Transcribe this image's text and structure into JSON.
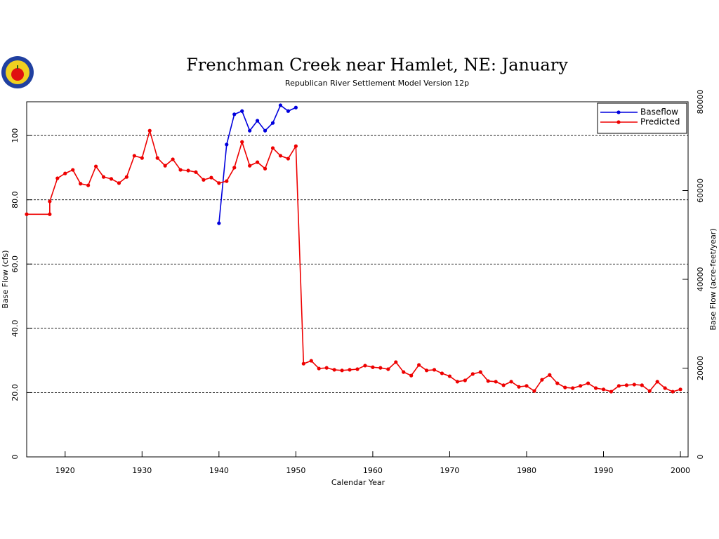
{
  "chart_data": {
    "type": "line",
    "title": "Frenchman Creek near Hamlet, NE: January",
    "subtitle": "Republican River Settlement Model Version 12p",
    "xlabel": "Calendar Year",
    "ylabel": "Base Flow (cfs)",
    "y2label": "Base Flow (acre-feet/year)",
    "xlim": [
      1915,
      2001
    ],
    "xticks": [
      1920,
      1930,
      1940,
      1950,
      1960,
      1970,
      1980,
      1990,
      2000
    ],
    "ylim": [
      0,
      110.5
    ],
    "yticks": [
      0,
      {
        "value": 20,
        "label": "20.0"
      },
      {
        "value": 40,
        "label": "40.0"
      },
      {
        "value": 60,
        "label": "60.0"
      },
      {
        "value": 80,
        "label": "80.0"
      },
      100
    ],
    "y2lim": [
      0,
      80000
    ],
    "y2ticks": [
      0,
      20000,
      40000,
      60000,
      80000
    ],
    "grid": true,
    "legend": "upper right",
    "series": [
      {
        "name": "Baseflow",
        "color": "#0000dd",
        "x": [
          1940,
          1941,
          1942,
          1943,
          1944,
          1945,
          1946,
          1947,
          1948,
          1949,
          1950
        ],
        "values": [
          72.7,
          97.2,
          106.6,
          107.6,
          101.5,
          104.6,
          101.5,
          103.9,
          109.4,
          107.6,
          108.7
        ]
      },
      {
        "name": "Predicted",
        "color": "#ee0000",
        "x": [
          1915,
          1918,
          1918,
          1919,
          1920,
          1921,
          1922,
          1923,
          1924,
          1925,
          1926,
          1927,
          1928,
          1929,
          1930,
          1931,
          1932,
          1933,
          1934,
          1935,
          1936,
          1937,
          1938,
          1939,
          1940,
          1941,
          1942,
          1943,
          1944,
          1945,
          1946,
          1947,
          1948,
          1949,
          1950,
          1951,
          1952,
          1953,
          1954,
          1955,
          1956,
          1957,
          1958,
          1959,
          1960,
          1961,
          1962,
          1963,
          1964,
          1965,
          1966,
          1967,
          1968,
          1969,
          1970,
          1971,
          1972,
          1973,
          1974,
          1975,
          1976,
          1977,
          1978,
          1979,
          1980,
          1981,
          1982,
          1983,
          1984,
          1985,
          1986,
          1987,
          1988,
          1989,
          1990,
          1991,
          1992,
          1993,
          1994,
          1995,
          1996,
          1997,
          1998,
          1999,
          2000
        ],
        "values": [
          75.5,
          75.5,
          79.5,
          86.7,
          88.2,
          89.3,
          85,
          84.5,
          90.4,
          87.1,
          86.5,
          85.2,
          87.1,
          93.7,
          93,
          101.5,
          93,
          90.6,
          92.6,
          89.3,
          89.1,
          88.6,
          86.2,
          86.9,
          85.2,
          85.8,
          90,
          98,
          90.6,
          91.7,
          89.7,
          96.1,
          93.7,
          92.8,
          96.7,
          29,
          29.9,
          27.5,
          27.7,
          27.1,
          26.9,
          27.1,
          27.3,
          28.4,
          27.9,
          27.7,
          27.3,
          29.5,
          26.4,
          25.3,
          28.6,
          26.9,
          27.1,
          26,
          25.1,
          23.4,
          23.8,
          25.8,
          26.4,
          23.6,
          23.4,
          22.3,
          23.4,
          21.8,
          22.1,
          20.5,
          24,
          25.5,
          22.9,
          21.6,
          21.4,
          22.1,
          22.9,
          21.4,
          21,
          20.3,
          22.1,
          22.3,
          22.5,
          22.3,
          20.5,
          23.4,
          21.4,
          20.3,
          21
        ]
      }
    ]
  }
}
